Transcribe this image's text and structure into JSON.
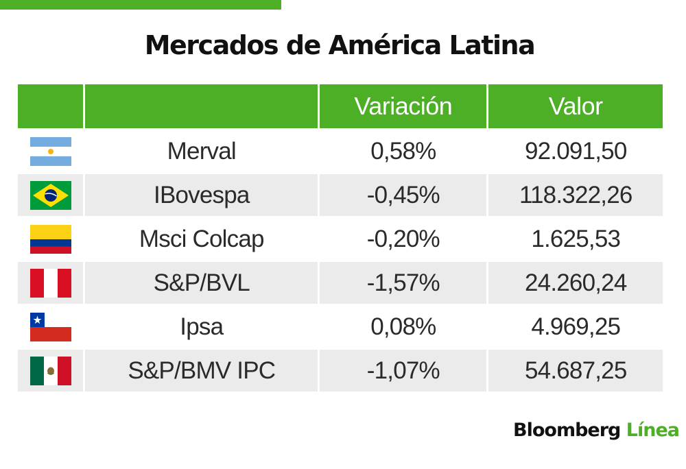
{
  "title": "Mercados de América Latina",
  "header": {
    "flag_col": "",
    "name_col": "",
    "variation_col": "Variación",
    "value_col": "Valor"
  },
  "rows": [
    {
      "flag": "argentina-flag-icon",
      "name": "Merval",
      "variation": "0,58%",
      "value": "92.091,50"
    },
    {
      "flag": "brazil-flag-icon",
      "name": "IBovespa",
      "variation": "-0,45%",
      "value": "118.322,26"
    },
    {
      "flag": "colombia-flag-icon",
      "name": "Msci Colcap",
      "variation": "-0,20%",
      "value": "1.625,53"
    },
    {
      "flag": "peru-flag-icon",
      "name": "S&P/BVL",
      "variation": "-1,57%",
      "value": "24.260,24"
    },
    {
      "flag": "chile-flag-icon",
      "name": "Ipsa",
      "variation": "0,08%",
      "value": "4.969,25"
    },
    {
      "flag": "mexico-flag-icon",
      "name": "S&P/BMV IPC",
      "variation": "-1,07%",
      "value": "54.687,25"
    }
  ],
  "brand": {
    "name": "Bloomberg",
    "accent": "Línea"
  },
  "colors": {
    "accent_green": "#4caf25",
    "stripe_gray": "#ebebeb"
  }
}
